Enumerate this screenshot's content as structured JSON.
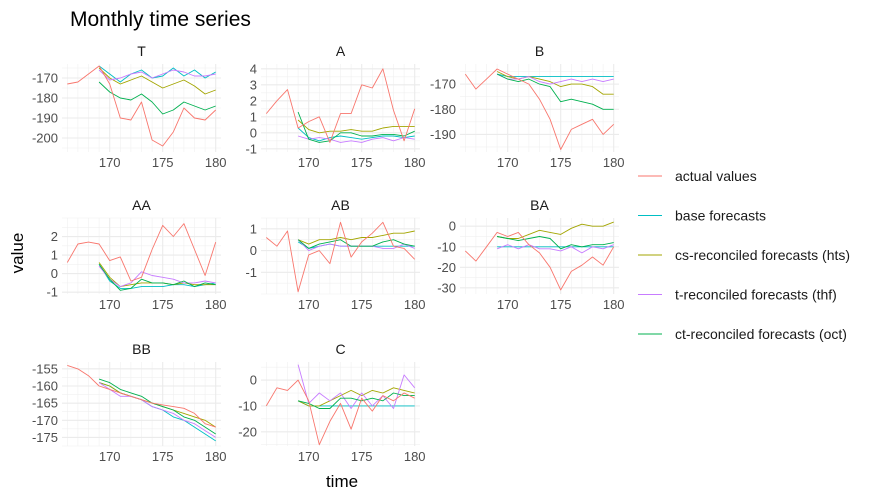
{
  "chart_data": {
    "type": "line",
    "title": "Monthly time series",
    "xlabel": "time",
    "ylabel": "value",
    "grid": true,
    "legend_position": "right",
    "series_styles": [
      {
        "name": "actual values",
        "color": "#F8766D"
      },
      {
        "name": "base forecasts",
        "color": "#00BFC4"
      },
      {
        "name": "cs-reconciled forecasts (hts)",
        "color": "#A3A500"
      },
      {
        "name": "t-reconciled forecasts (thf)",
        "color": "#C77CFF"
      },
      {
        "name": "ct-reconciled forecasts (oct)",
        "color": "#00B04F"
      }
    ],
    "panels": [
      {
        "id": "T",
        "title": "T",
        "xlim": [
          165.5,
          180.5
        ],
        "xticks": [
          170,
          175,
          180
        ],
        "ylim": [
          -207,
          -163
        ],
        "yticks": [
          -170,
          -180,
          -190,
          -200
        ],
        "actual": {
          "x": [
            166,
            167,
            168,
            169,
            170,
            171,
            172,
            173,
            174,
            175,
            176,
            177,
            178,
            179,
            180
          ],
          "y": [
            -173,
            -172,
            -168,
            -164,
            -173,
            -190,
            -191,
            -182,
            -201,
            -204,
            -197,
            -185,
            -190,
            -191,
            -186
          ]
        },
        "forecasts": {
          "x": [
            169,
            170,
            171,
            172,
            173,
            174,
            175,
            176,
            177,
            178,
            179,
            180
          ],
          "base": [
            -164,
            -168,
            -172,
            -168,
            -166,
            -170,
            -169,
            -165,
            -169,
            -166,
            -170,
            -167
          ],
          "hts": [
            -165,
            -170,
            -173,
            -171,
            -169,
            -172,
            -175,
            -173,
            -171,
            -174,
            -178,
            -176
          ],
          "thf": [
            -166,
            -171,
            -170,
            -168,
            -167,
            -170,
            -168,
            -166,
            -167,
            -169,
            -169,
            -168
          ],
          "oct": [
            -172,
            -177,
            -180,
            -181,
            -178,
            -182,
            -188,
            -186,
            -182,
            -184,
            -186,
            -184
          ]
        }
      },
      {
        "id": "A",
        "title": "A",
        "xlim": [
          165.5,
          180.5
        ],
        "xticks": [
          170,
          175,
          180
        ],
        "ylim": [
          -1.2,
          4.3
        ],
        "yticks": [
          4,
          3,
          2,
          1,
          0,
          -1
        ],
        "actual": {
          "x": [
            166,
            167,
            168,
            169,
            170,
            171,
            172,
            173,
            174,
            175,
            176,
            177,
            178,
            179,
            180
          ],
          "y": [
            1.2,
            2.0,
            2.7,
            0.3,
            0.7,
            1.0,
            -0.6,
            1.2,
            1.2,
            3.0,
            2.8,
            4.0,
            1.4,
            -0.5,
            1.5
          ]
        },
        "forecasts": {
          "x": [
            169,
            170,
            171,
            172,
            173,
            174,
            175,
            176,
            177,
            178,
            179,
            180
          ],
          "base": [
            0.3,
            -0.3,
            -0.5,
            -0.3,
            -0.2,
            -0.3,
            -0.4,
            -0.3,
            -0.2,
            -0.2,
            -0.3,
            -0.2
          ],
          "hts": [
            0.8,
            0.2,
            0.0,
            0.1,
            0.1,
            0.2,
            0.1,
            0.1,
            0.3,
            0.4,
            0.4,
            0.4
          ],
          "thf": [
            -0.2,
            -0.4,
            -0.3,
            -0.4,
            -0.6,
            -0.5,
            -0.6,
            -0.4,
            -0.3,
            -0.5,
            -0.3,
            -0.4
          ],
          "oct": [
            1.3,
            -0.4,
            -0.6,
            -0.5,
            0.0,
            0.0,
            -0.2,
            -0.2,
            -0.1,
            -0.1,
            -0.2,
            0.1
          ]
        }
      },
      {
        "id": "B",
        "title": "B",
        "xlim": [
          165.5,
          180.5
        ],
        "xticks": [
          170,
          175,
          180
        ],
        "ylim": [
          -197,
          -162
        ],
        "yticks": [
          -170,
          -180,
          -190
        ],
        "actual": {
          "x": [
            166,
            167,
            168,
            169,
            170,
            171,
            172,
            173,
            174,
            175,
            176,
            177,
            178,
            179,
            180
          ],
          "y": [
            -166,
            -172,
            -168,
            -164,
            -166,
            -168,
            -170,
            -176,
            -184,
            -196,
            -188,
            -186,
            -184,
            -190,
            -186
          ]
        },
        "forecasts": {
          "x": [
            169,
            170,
            171,
            172,
            173,
            174,
            175,
            176,
            177,
            178,
            179,
            180
          ],
          "base": [
            -166,
            -167,
            -167,
            -167,
            -167,
            -167,
            -167,
            -167,
            -167,
            -167,
            -167,
            -167
          ],
          "hts": [
            -165,
            -167,
            -168,
            -167,
            -168,
            -169,
            -171,
            -170,
            -170,
            -171,
            -174,
            -174
          ],
          "thf": [
            -166,
            -168,
            -168,
            -167,
            -169,
            -170,
            -169,
            -168,
            -169,
            -168,
            -169,
            -168
          ],
          "oct": [
            -166,
            -168,
            -169,
            -168,
            -170,
            -171,
            -177,
            -176,
            -177,
            -178,
            -180,
            -180
          ]
        }
      },
      {
        "id": "AA",
        "title": "AA",
        "xlim": [
          165.5,
          180.5
        ],
        "xticks": [
          170,
          175,
          180
        ],
        "ylim": [
          -1.1,
          3.0
        ],
        "yticks": [
          2,
          1,
          0,
          -1
        ],
        "actual": {
          "x": [
            166,
            167,
            168,
            169,
            170,
            171,
            172,
            173,
            174,
            175,
            176,
            177,
            178,
            179,
            180
          ],
          "y": [
            0.6,
            1.6,
            1.7,
            1.6,
            0.7,
            0.9,
            -0.4,
            -0.2,
            1.3,
            2.6,
            2.0,
            2.7,
            1.3,
            -0.1,
            1.7
          ]
        },
        "forecasts": {
          "x": [
            169,
            170,
            171,
            172,
            173,
            174,
            175,
            176,
            177,
            178,
            179,
            180
          ],
          "base": [
            0.5,
            -0.4,
            -0.8,
            -0.8,
            -0.7,
            -0.7,
            -0.7,
            -0.6,
            -0.6,
            -0.7,
            -0.6,
            -0.5
          ],
          "hts": [
            0.6,
            -0.2,
            -0.7,
            -0.6,
            -0.5,
            -0.5,
            -0.5,
            -0.6,
            -0.5,
            -0.6,
            -0.6,
            -0.6
          ],
          "thf": [
            0.4,
            -0.3,
            -0.7,
            -0.5,
            0.1,
            -0.1,
            -0.2,
            -0.3,
            -0.5,
            -0.5,
            -0.4,
            -0.5
          ],
          "oct": [
            0.5,
            -0.3,
            -0.9,
            -0.8,
            -0.3,
            -0.5,
            -0.5,
            -0.6,
            -0.4,
            -0.7,
            -0.5,
            -0.6
          ]
        }
      },
      {
        "id": "AB",
        "title": "AB",
        "xlim": [
          165.5,
          180.5
        ],
        "xticks": [
          170,
          175,
          180
        ],
        "ylim": [
          -2.0,
          1.5
        ],
        "yticks": [
          1,
          0,
          -1
        ],
        "actual": {
          "x": [
            166,
            167,
            168,
            169,
            170,
            171,
            172,
            173,
            174,
            175,
            176,
            177,
            178,
            179,
            180
          ],
          "y": [
            0.6,
            0.2,
            0.9,
            -1.9,
            -0.2,
            0.0,
            -0.6,
            1.3,
            -0.3,
            0.4,
            0.8,
            1.3,
            0.2,
            0.1,
            -0.4
          ]
        },
        "forecasts": {
          "x": [
            169,
            170,
            171,
            172,
            173,
            174,
            175,
            176,
            177,
            178,
            179,
            180
          ],
          "base": [
            0.4,
            0.1,
            0.2,
            0.3,
            0.2,
            0.2,
            0.2,
            0.2,
            0.2,
            0.2,
            0.2,
            0.2
          ],
          "hts": [
            0.5,
            0.3,
            0.5,
            0.5,
            0.6,
            0.5,
            0.6,
            0.6,
            0.7,
            0.8,
            0.8,
            0.9
          ],
          "thf": [
            0.5,
            0.0,
            0.2,
            0.3,
            0.2,
            0.2,
            0.2,
            0.2,
            0.1,
            0.1,
            0.3,
            0.1
          ],
          "oct": [
            0.5,
            0.1,
            0.3,
            0.4,
            0.5,
            0.2,
            0.2,
            0.2,
            0.4,
            0.5,
            0.3,
            0.2
          ]
        }
      },
      {
        "id": "BA",
        "title": "BA",
        "xlim": [
          165.5,
          180.5
        ],
        "xticks": [
          170,
          175,
          180
        ],
        "ylim": [
          -33,
          4
        ],
        "yticks": [
          0,
          -10,
          -20,
          -30
        ],
        "actual": {
          "x": [
            166,
            167,
            168,
            169,
            170,
            171,
            172,
            173,
            174,
            175,
            176,
            177,
            178,
            179,
            180
          ],
          "y": [
            -12,
            -17,
            -10,
            -3,
            -5,
            -3,
            -9,
            -13,
            -20,
            -31,
            -22,
            -19,
            -15,
            -19,
            -10
          ]
        },
        "forecasts": {
          "x": [
            169,
            170,
            171,
            172,
            173,
            174,
            175,
            176,
            177,
            178,
            179,
            180
          ],
          "base": [
            -10,
            -10,
            -10,
            -10,
            -10,
            -10,
            -10,
            -10,
            -10,
            -10,
            -10,
            -10
          ],
          "hts": [
            -5,
            -6,
            -6,
            -4,
            -2,
            -3,
            -4,
            -1,
            1,
            0,
            0,
            2
          ],
          "thf": [
            -11,
            -9,
            -11,
            -9,
            -11,
            -11,
            -12,
            -10,
            -13,
            -10,
            -11,
            -9
          ],
          "oct": [
            -5,
            -6,
            -7,
            -6,
            -5,
            -6,
            -11,
            -9,
            -10,
            -9,
            -9,
            -8
          ]
        }
      },
      {
        "id": "BB",
        "title": "BB",
        "xlim": [
          165.5,
          180.5
        ],
        "xticks": [
          170,
          175,
          180
        ],
        "ylim": [
          -177.5,
          -153
        ],
        "yticks": [
          -155,
          -160,
          -165,
          -170,
          -175
        ],
        "actual": {
          "x": [
            166,
            167,
            168,
            169,
            170,
            171,
            172,
            173,
            174,
            175,
            176,
            177,
            178,
            179,
            180
          ],
          "y": [
            -154,
            -155,
            -157,
            -160,
            -161,
            -162,
            -163,
            -164,
            -165,
            -165.5,
            -166,
            -166.5,
            -168,
            -171,
            -172
          ]
        },
        "forecasts": {
          "x": [
            169,
            170,
            171,
            172,
            173,
            174,
            175,
            176,
            177,
            178,
            179,
            180
          ],
          "base": [
            -159,
            -160,
            -162,
            -163,
            -164,
            -166,
            -167,
            -169,
            -170,
            -172,
            -174,
            -176
          ],
          "hts": [
            -159,
            -160,
            -162,
            -163,
            -164,
            -165,
            -166,
            -167,
            -168,
            -169,
            -170,
            -172
          ],
          "thf": [
            -159,
            -161,
            -163,
            -163,
            -164,
            -166,
            -167,
            -168,
            -170,
            -171,
            -173,
            -175
          ],
          "oct": [
            -158,
            -159,
            -161,
            -162,
            -163,
            -165,
            -166,
            -167,
            -169,
            -170,
            -172,
            -174
          ]
        }
      },
      {
        "id": "C",
        "title": "C",
        "xlim": [
          165.5,
          180.5
        ],
        "xticks": [
          170,
          175,
          180
        ],
        "ylim": [
          -25.5,
          7
        ],
        "yticks": [
          0,
          -10,
          -20
        ],
        "actual": {
          "x": [
            166,
            167,
            168,
            169,
            170,
            171,
            172,
            173,
            174,
            175,
            176,
            177,
            178,
            179,
            180
          ],
          "y": [
            -10,
            -3,
            -4,
            0,
            -8,
            -25,
            -16,
            -9,
            -19,
            -7,
            -12,
            -6,
            -8,
            -5,
            -7
          ]
        },
        "forecasts": {
          "x": [
            169,
            170,
            171,
            172,
            173,
            174,
            175,
            176,
            177,
            178,
            179,
            180
          ],
          "base": [
            -8,
            -10,
            -10,
            -10,
            -10,
            -10,
            -10,
            -10,
            -10,
            -10,
            -10,
            -10
          ],
          "hts": [
            -8,
            -10,
            -10,
            -8,
            -6,
            -4,
            -6,
            -4,
            -5,
            -3,
            -4,
            -5
          ],
          "thf": [
            6,
            -9,
            -5,
            -8,
            -5,
            -11,
            -5,
            -10,
            -6,
            -11,
            2,
            -3
          ],
          "oct": [
            -8,
            -9,
            -11,
            -11,
            -7,
            -7,
            -8,
            -7,
            -8,
            -5,
            -6,
            -6
          ]
        }
      }
    ]
  }
}
